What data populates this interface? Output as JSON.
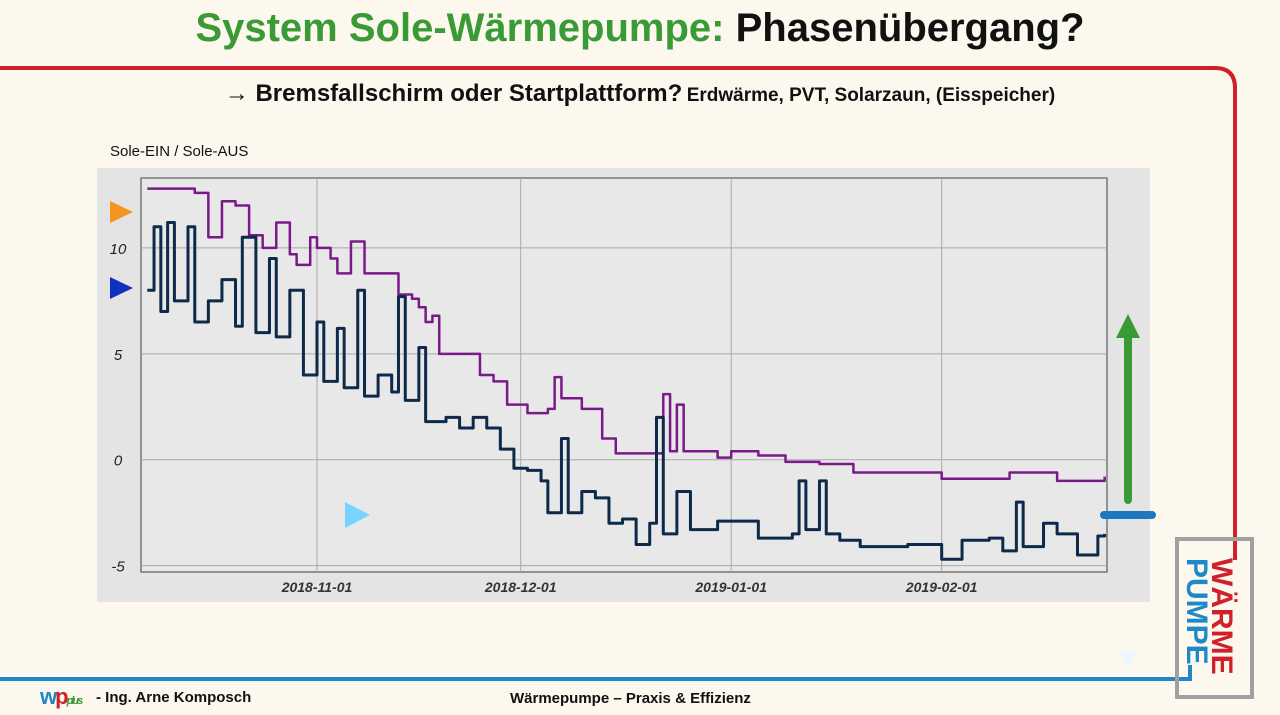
{
  "slide": {
    "title_green": "System Sole-Wärmepumpe:",
    "title_black": "Phasenübergang?",
    "subtitle_main": "→ Bremsfallschirm oder Startplattform?",
    "subtitle_small": "Erdwärme, PVT, Solarzaun, (Eisspeicher)",
    "footer_author": "- Ing. Arne Komposch",
    "footer_title": "Wärmepumpe – Praxis & Effizienz",
    "logo_text": "wp plus",
    "badge_top": "WÄRME",
    "badge_bottom": "PUMPE"
  },
  "colors": {
    "title_green": "#3a9a35",
    "frame_red": "#d0202a",
    "frame_blue": "#1e88c8",
    "series_in": "#7a1a8a",
    "series_out": "#0d2a4a",
    "arrow_green": "#3a9a35",
    "marker_orange": "#f7941d",
    "marker_blue": "#1030c0"
  },
  "chart_data": {
    "type": "line",
    "title": "Sole-EIN / Sole-AUS",
    "xlabel": "",
    "ylabel": "",
    "x_ticks": [
      "2018-11-01",
      "2018-12-01",
      "2019-01-01",
      "2019-02-01"
    ],
    "y_ticks": [
      -5,
      0,
      5,
      10
    ],
    "xlim": [
      "2018-10-05",
      "2019-02-25"
    ],
    "ylim": [
      -5.3,
      13.3
    ],
    "grid": true,
    "series": [
      {
        "color": "#7a1a8a",
        "points": [
          [
            "2018-10-07",
            12.8
          ],
          [
            "2018-10-14",
            12.6
          ],
          [
            "2018-10-16",
            10.5
          ],
          [
            "2018-10-18",
            12.2
          ],
          [
            "2018-10-20",
            12.0
          ],
          [
            "2018-10-22",
            10.6
          ],
          [
            "2018-10-24",
            10.0
          ],
          [
            "2018-10-26",
            11.2
          ],
          [
            "2018-10-28",
            9.7
          ],
          [
            "2018-10-29",
            9.2
          ],
          [
            "2018-10-31",
            10.5
          ],
          [
            "2018-11-01",
            10.0
          ],
          [
            "2018-11-03",
            9.5
          ],
          [
            "2018-11-04",
            8.8
          ],
          [
            "2018-11-06",
            10.3
          ],
          [
            "2018-11-08",
            8.8
          ],
          [
            "2018-11-13",
            7.8
          ],
          [
            "2018-11-15",
            7.6
          ],
          [
            "2018-11-16",
            7.2
          ],
          [
            "2018-11-17",
            6.5
          ],
          [
            "2018-11-18",
            6.8
          ],
          [
            "2018-11-19",
            5.0
          ],
          [
            "2018-11-23",
            5.0
          ],
          [
            "2018-11-25",
            4.0
          ],
          [
            "2018-11-27",
            3.7
          ],
          [
            "2018-11-29",
            2.6
          ],
          [
            "2018-12-01",
            2.6
          ],
          [
            "2018-12-02",
            2.2
          ],
          [
            "2018-12-05",
            2.4
          ],
          [
            "2018-12-06",
            3.9
          ],
          [
            "2018-12-07",
            2.9
          ],
          [
            "2018-12-09",
            2.9
          ],
          [
            "2018-12-10",
            2.4
          ],
          [
            "2018-12-13",
            1.0
          ],
          [
            "2018-12-15",
            0.3
          ],
          [
            "2018-12-21",
            0.3
          ],
          [
            "2018-12-22",
            3.1
          ],
          [
            "2018-12-23",
            0.4
          ],
          [
            "2018-12-24",
            2.6
          ],
          [
            "2018-12-25",
            0.4
          ],
          [
            "2018-12-30",
            0.1
          ],
          [
            "2019-01-01",
            0.4
          ],
          [
            "2019-01-05",
            0.2
          ],
          [
            "2019-01-09",
            -0.1
          ],
          [
            "2019-01-14",
            -0.2
          ],
          [
            "2019-01-19",
            -0.6
          ],
          [
            "2019-02-01",
            -0.9
          ],
          [
            "2019-02-11",
            -0.6
          ],
          [
            "2019-02-18",
            -1.0
          ],
          [
            "2019-02-25",
            -0.8
          ]
        ]
      },
      {
        "color": "#0d2a4a",
        "points": [
          [
            "2018-10-07",
            8.0
          ],
          [
            "2018-10-08",
            11.0
          ],
          [
            "2018-10-09",
            7.0
          ],
          [
            "2018-10-10",
            11.2
          ],
          [
            "2018-10-11",
            7.5
          ],
          [
            "2018-10-13",
            11.0
          ],
          [
            "2018-10-14",
            6.5
          ],
          [
            "2018-10-16",
            7.5
          ],
          [
            "2018-10-18",
            8.5
          ],
          [
            "2018-10-20",
            6.3
          ],
          [
            "2018-10-21",
            10.5
          ],
          [
            "2018-10-23",
            6.0
          ],
          [
            "2018-10-25",
            9.5
          ],
          [
            "2018-10-26",
            5.8
          ],
          [
            "2018-10-28",
            8.0
          ],
          [
            "2018-10-30",
            4.0
          ],
          [
            "2018-11-01",
            6.5
          ],
          [
            "2018-11-02",
            3.7
          ],
          [
            "2018-11-04",
            6.2
          ],
          [
            "2018-11-05",
            3.4
          ],
          [
            "2018-11-07",
            8.0
          ],
          [
            "2018-11-08",
            3.0
          ],
          [
            "2018-11-10",
            4.0
          ],
          [
            "2018-11-12",
            3.2
          ],
          [
            "2018-11-13",
            7.7
          ],
          [
            "2018-11-14",
            2.8
          ],
          [
            "2018-11-16",
            5.3
          ],
          [
            "2018-11-17",
            1.8
          ],
          [
            "2018-11-20",
            2.0
          ],
          [
            "2018-11-22",
            1.5
          ],
          [
            "2018-11-24",
            2.0
          ],
          [
            "2018-11-26",
            1.5
          ],
          [
            "2018-11-28",
            0.5
          ],
          [
            "2018-11-30",
            -0.4
          ],
          [
            "2018-12-02",
            -0.5
          ],
          [
            "2018-12-04",
            -1.0
          ],
          [
            "2018-12-05",
            -2.5
          ],
          [
            "2018-12-07",
            1.0
          ],
          [
            "2018-12-08",
            -2.5
          ],
          [
            "2018-12-10",
            -1.5
          ],
          [
            "2018-12-12",
            -1.8
          ],
          [
            "2018-12-14",
            -3.0
          ],
          [
            "2018-12-16",
            -2.8
          ],
          [
            "2018-12-18",
            -4.0
          ],
          [
            "2018-12-20",
            -3.0
          ],
          [
            "2018-12-21",
            2.0
          ],
          [
            "2018-12-22",
            -3.5
          ],
          [
            "2018-12-24",
            -1.5
          ],
          [
            "2018-12-26",
            -3.3
          ],
          [
            "2018-12-30",
            -2.9
          ],
          [
            "2019-01-05",
            -3.7
          ],
          [
            "2019-01-10",
            -3.5
          ],
          [
            "2019-01-11",
            -1.0
          ],
          [
            "2019-01-12",
            -3.3
          ],
          [
            "2019-01-14",
            -1.0
          ],
          [
            "2019-01-15",
            -3.5
          ],
          [
            "2019-01-17",
            -3.8
          ],
          [
            "2019-01-20",
            -4.1
          ],
          [
            "2019-01-27",
            -4.0
          ],
          [
            "2019-02-01",
            -4.7
          ],
          [
            "2019-02-04",
            -3.8
          ],
          [
            "2019-02-08",
            -3.7
          ],
          [
            "2019-02-10",
            -4.3
          ],
          [
            "2019-02-12",
            -2.0
          ],
          [
            "2019-02-13",
            -4.1
          ],
          [
            "2019-02-16",
            -3.0
          ],
          [
            "2019-02-18",
            -3.5
          ],
          [
            "2019-02-21",
            -4.5
          ],
          [
            "2019-02-24",
            -3.6
          ],
          [
            "2019-02-25",
            -3.5
          ]
        ]
      }
    ]
  }
}
